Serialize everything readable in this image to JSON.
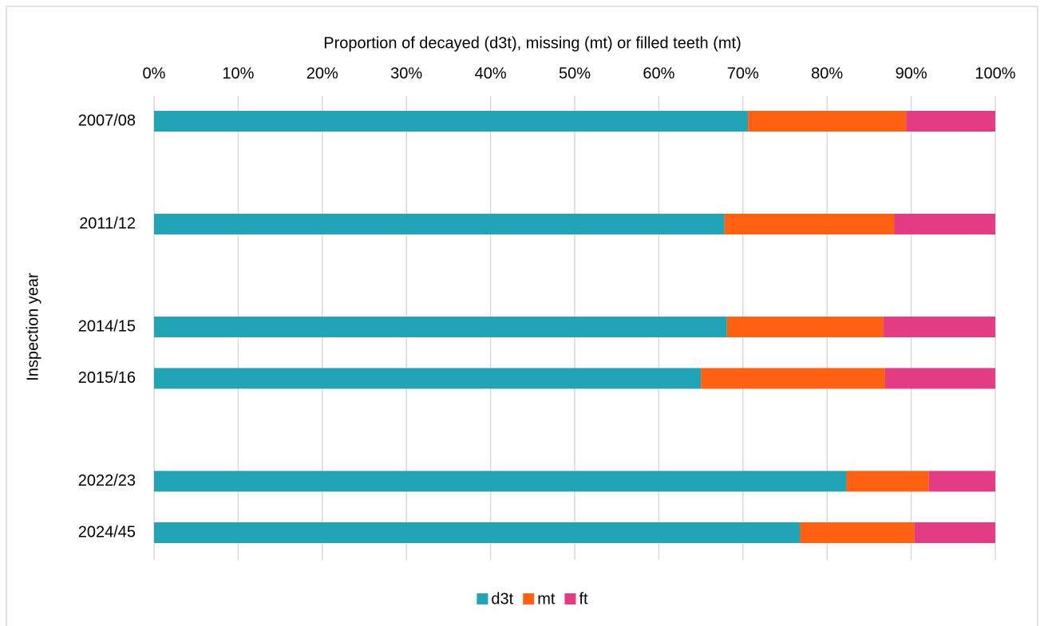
{
  "chart_data": {
    "type": "stacked-bar-horizontal",
    "title": "Proportion of decayed (d3t), missing (mt) or filled teeth (mt)",
    "y_label": "Inspection year",
    "categories": [
      "2007/08",
      null,
      "2011/12",
      null,
      "2014/15",
      "2015/16",
      null,
      "2022/23",
      "2024/45"
    ],
    "series": [
      {
        "name": "d3t",
        "color": "#23a3b6",
        "values": [
          70.6,
          null,
          67.8,
          null,
          68.1,
          65.0,
          null,
          82.3,
          76.8
        ]
      },
      {
        "name": "mt",
        "color": "#ff6011",
        "values": [
          18.8,
          null,
          20.2,
          null,
          18.6,
          21.9,
          null,
          9.8,
          13.6
        ]
      },
      {
        "name": "ft",
        "color": "#e33b84",
        "values": [
          10.6,
          null,
          12.0,
          null,
          13.3,
          13.1,
          null,
          7.9,
          9.6
        ]
      }
    ],
    "xlim": [
      0,
      100
    ],
    "xticks": [
      {
        "value": 0,
        "label": "0%"
      },
      {
        "value": 10,
        "label": "10%"
      },
      {
        "value": 20,
        "label": "20%"
      },
      {
        "value": 30,
        "label": "30%"
      },
      {
        "value": 40,
        "label": "40%"
      },
      {
        "value": 50,
        "label": "50%"
      },
      {
        "value": 60,
        "label": "60%"
      },
      {
        "value": 70,
        "label": "70%"
      },
      {
        "value": 80,
        "label": "80%"
      },
      {
        "value": 90,
        "label": "90%"
      },
      {
        "value": 100,
        "label": "100%"
      }
    ],
    "grid": true,
    "legend": "bottom"
  }
}
